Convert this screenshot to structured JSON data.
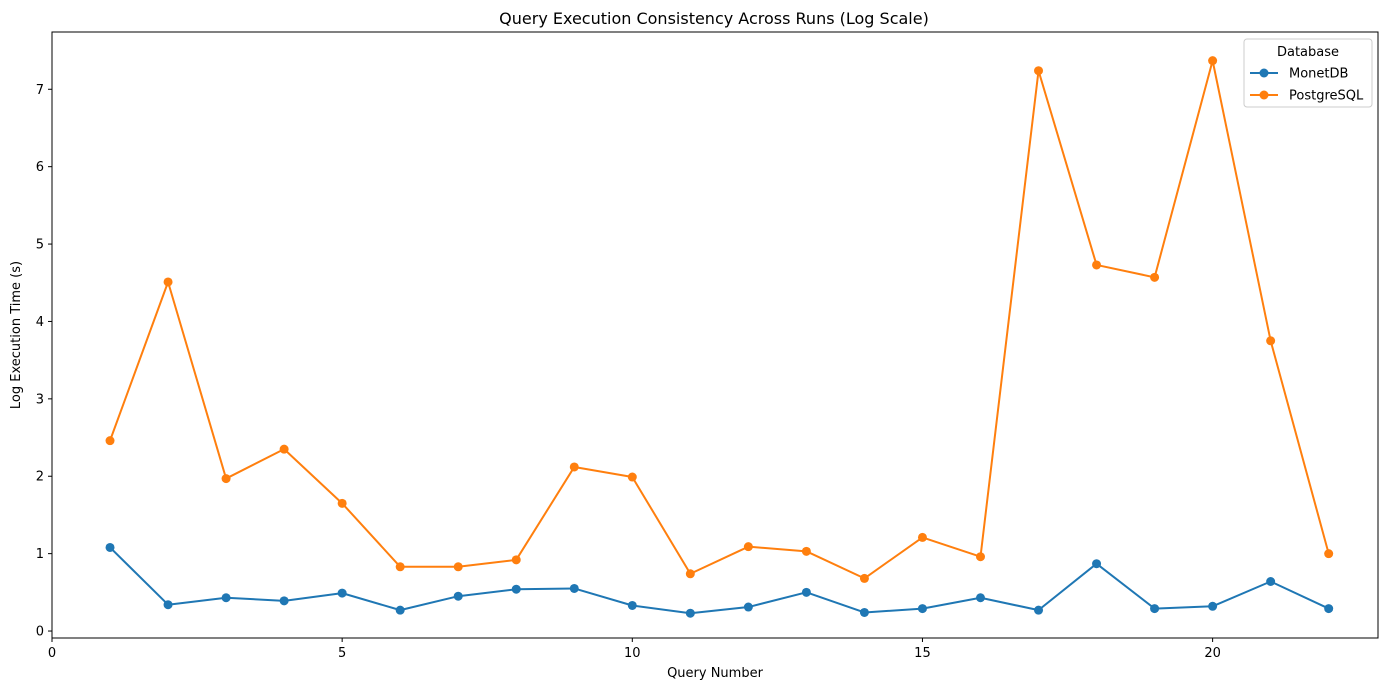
{
  "chart_data": {
    "type": "line",
    "title": "Query Execution Consistency Across Runs (Log Scale)",
    "xlabel": "Query Number",
    "ylabel": "Log Execution Time (s)",
    "xlim": [
      0,
      22.85
    ],
    "ylim": [
      -0.09,
      7.74
    ],
    "xticks": [
      0,
      5,
      10,
      15,
      20
    ],
    "yticks": [
      0,
      1,
      2,
      3,
      4,
      5,
      6,
      7
    ],
    "grid": false,
    "legend": {
      "title": "Database",
      "position": "top-right"
    },
    "x": [
      1,
      2,
      3,
      4,
      5,
      6,
      7,
      8,
      9,
      10,
      11,
      12,
      13,
      14,
      15,
      16,
      17,
      18,
      19,
      20,
      21,
      22
    ],
    "series": [
      {
        "name": "MonetDB",
        "color": "#1f77b4",
        "values": [
          1.08,
          0.34,
          0.43,
          0.39,
          0.49,
          0.27,
          0.45,
          0.54,
          0.55,
          0.33,
          0.23,
          0.31,
          0.5,
          0.24,
          0.29,
          0.43,
          0.27,
          0.87,
          0.29,
          0.32,
          0.64,
          0.29
        ]
      },
      {
        "name": "PostgreSQL",
        "color": "#ff7f0e",
        "values": [
          2.46,
          4.51,
          1.97,
          2.35,
          1.65,
          0.83,
          0.83,
          0.92,
          2.12,
          1.99,
          0.74,
          1.09,
          1.03,
          0.68,
          1.21,
          0.96,
          7.24,
          4.73,
          4.57,
          7.37,
          3.75,
          1.0
        ]
      }
    ]
  }
}
